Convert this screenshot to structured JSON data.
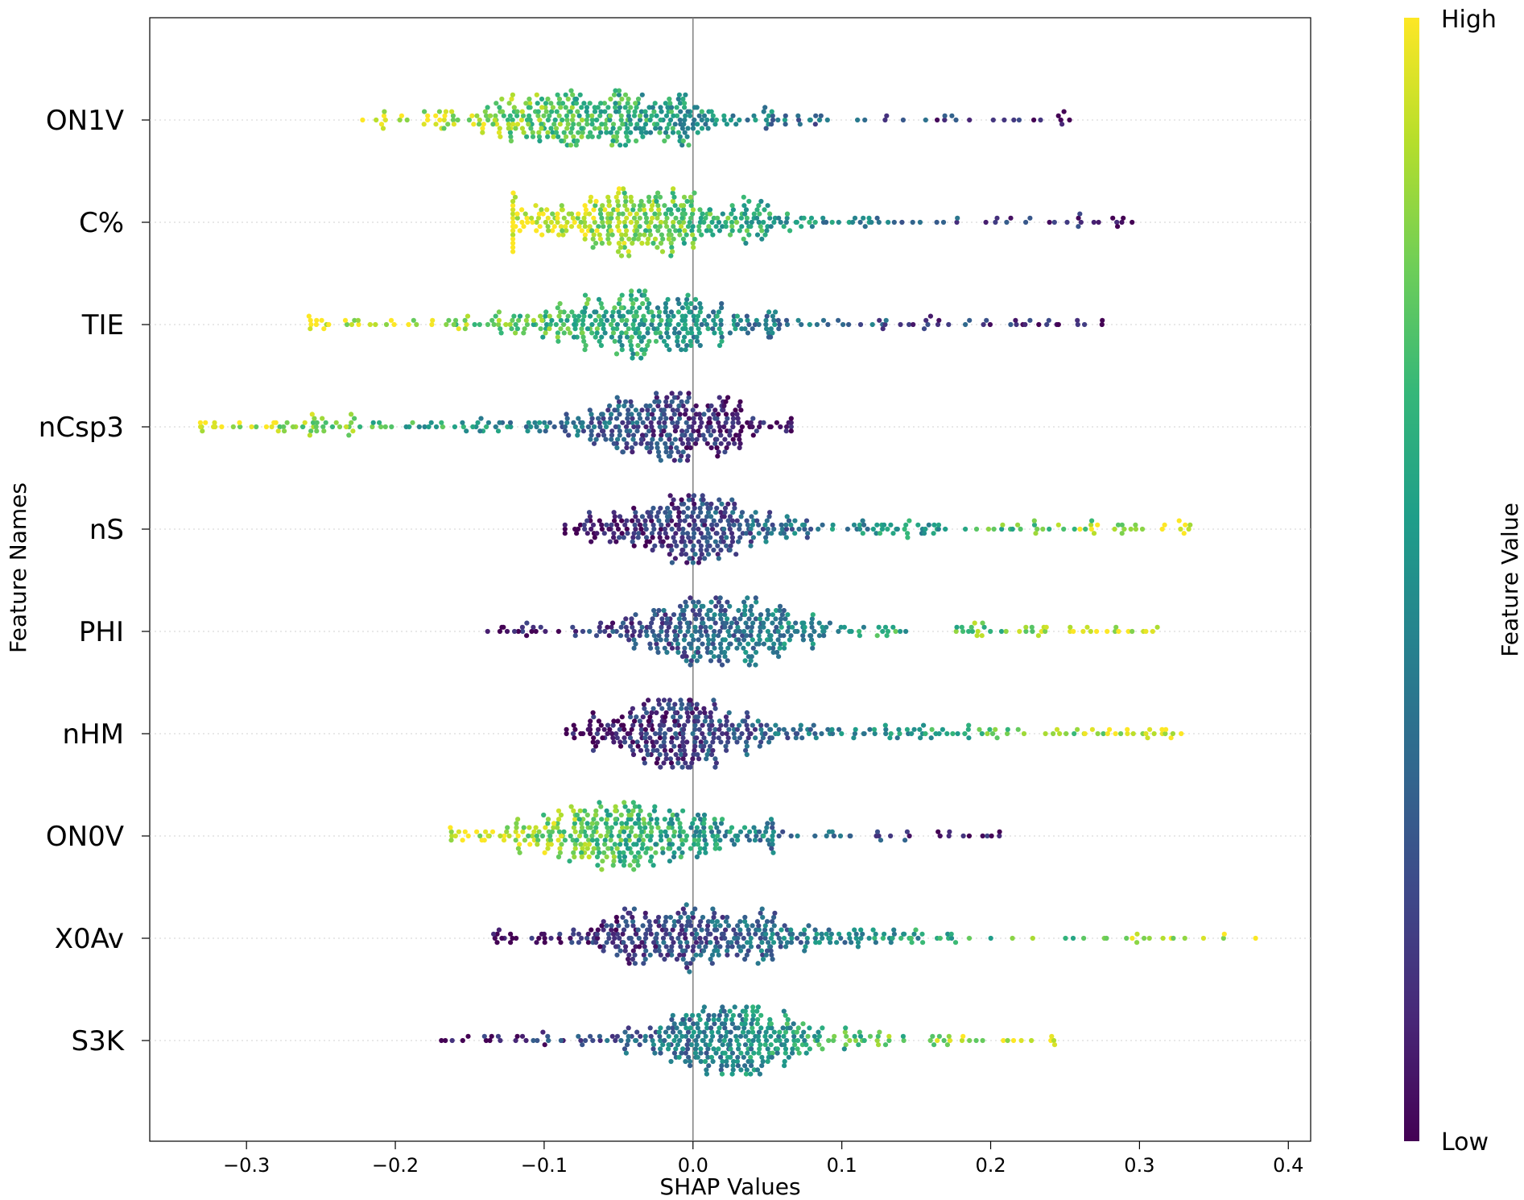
{
  "chart_data": {
    "type": "scatter",
    "subtype": "shap-beeswarm",
    "title": "",
    "xlabel": "SHAP Values",
    "ylabel": "Feature Names",
    "xlim": [
      -0.365,
      0.415
    ],
    "x_ticks": [
      -0.3,
      -0.2,
      -0.1,
      0.0,
      0.1,
      0.2,
      0.3,
      0.4
    ],
    "x_tick_labels": [
      "−0.3",
      "−0.2",
      "−0.1",
      "0.0",
      "0.1",
      "0.2",
      "0.3",
      "0.4"
    ],
    "zero_line": true,
    "grid": "horizontal-dotted",
    "colorbar": {
      "label": "Feature Value",
      "high_label": "High",
      "low_label": "Low",
      "colormap": "viridis",
      "colors": [
        "#440154",
        "#482878",
        "#3e4989",
        "#31688e",
        "#26828e",
        "#1f9e89",
        "#35b779",
        "#6ece58",
        "#b5de2b",
        "#fde725"
      ]
    },
    "features": [
      {
        "name": "ON1V",
        "min": -0.222,
        "max": 0.253,
        "mode": -0.06,
        "spread": 0.045,
        "trend": "neg",
        "rare_right": 0.05
      },
      {
        "name": "C%",
        "min": -0.121,
        "max": 0.295,
        "mode": -0.04,
        "spread": 0.045,
        "trend": "neg",
        "rare_right": 0.06
      },
      {
        "name": "TIE",
        "min": -0.258,
        "max": 0.275,
        "mode": -0.04,
        "spread": 0.045,
        "trend": "neg",
        "rare_right": 0.08
      },
      {
        "name": "nCsp3",
        "min": -0.331,
        "max": 0.066,
        "mode": -0.02,
        "spread": 0.035,
        "trend": "neg",
        "rare_right": 0.0
      },
      {
        "name": "nS",
        "min": -0.086,
        "max": 0.334,
        "mode": -0.008,
        "spread": 0.03,
        "trend": "pos",
        "rare_right": 0.12
      },
      {
        "name": "PHI",
        "min": -0.138,
        "max": 0.312,
        "mode": 0.02,
        "spread": 0.035,
        "trend": "pos",
        "rare_right": 0.08
      },
      {
        "name": "nHM",
        "min": -0.085,
        "max": 0.328,
        "mode": -0.008,
        "spread": 0.03,
        "trend": "pos",
        "rare_right": 0.12
      },
      {
        "name": "ON0V",
        "min": -0.163,
        "max": 0.206,
        "mode": -0.045,
        "spread": 0.04,
        "trend": "neg",
        "rare_right": 0.06
      },
      {
        "name": "X0Av",
        "min": -0.134,
        "max": 0.378,
        "mode": -0.005,
        "spread": 0.04,
        "trend": "pos",
        "rare_right": 0.08
      },
      {
        "name": "S3K",
        "min": -0.169,
        "max": 0.243,
        "mode": 0.03,
        "spread": 0.035,
        "trend": "pos",
        "rare_right": 0.05
      }
    ]
  }
}
